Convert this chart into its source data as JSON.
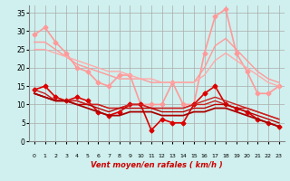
{
  "title": "Vent moyen/en rafales ( km/h )",
  "background_color": "#cff0ee",
  "grid_color": "#aaaaaa",
  "x_ticks": [
    0,
    1,
    2,
    3,
    4,
    5,
    6,
    7,
    8,
    9,
    10,
    11,
    12,
    13,
    14,
    15,
    16,
    17,
    18,
    19,
    20,
    21,
    22,
    23
  ],
  "y_ticks": [
    0,
    5,
    10,
    15,
    20,
    25,
    30,
    35
  ],
  "ylim": [
    0,
    37
  ],
  "xlim": [
    -0.5,
    23.5
  ],
  "series": [
    {
      "data": [
        29,
        31,
        27,
        24,
        20,
        19,
        16,
        15,
        18,
        18,
        10,
        10,
        10,
        16,
        10,
        10,
        24,
        34,
        36,
        24,
        19,
        13,
        13,
        15
      ],
      "color": "#ff9999",
      "linewidth": 1.2,
      "marker": "D",
      "markersize": 2.5
    },
    {
      "data": [
        27,
        27,
        25,
        23,
        21,
        20,
        19,
        18,
        17,
        17,
        17,
        16,
        16,
        16,
        16,
        16,
        20,
        26,
        28,
        25,
        22,
        19,
        17,
        16
      ],
      "color": "#ff9999",
      "linewidth": 1.0,
      "marker": null,
      "markersize": 0
    },
    {
      "data": [
        25,
        25,
        24,
        23,
        22,
        21,
        20,
        19,
        19,
        18,
        17,
        17,
        16,
        16,
        16,
        16,
        18,
        22,
        24,
        22,
        20,
        18,
        16,
        15
      ],
      "color": "#ffaaaa",
      "linewidth": 1.0,
      "marker": null,
      "markersize": 0
    },
    {
      "data": [
        14,
        15,
        12,
        11,
        12,
        11,
        8,
        7,
        8,
        10,
        10,
        3,
        6,
        5,
        5,
        10,
        13,
        15,
        10,
        9,
        8,
        6,
        5,
        4
      ],
      "color": "#dd0000",
      "linewidth": 1.2,
      "marker": "D",
      "markersize": 2.5
    },
    {
      "data": [
        14,
        13,
        11,
        11,
        11,
        10,
        10,
        9,
        9,
        10,
        10,
        9,
        9,
        9,
        9,
        10,
        11,
        12,
        11,
        10,
        9,
        8,
        7,
        6
      ],
      "color": "#cc2222",
      "linewidth": 1.0,
      "marker": null,
      "markersize": 0
    },
    {
      "data": [
        13,
        12,
        11,
        11,
        11,
        10,
        10,
        9,
        9,
        10,
        10,
        9,
        9,
        9,
        9,
        10,
        10,
        11,
        10,
        9,
        9,
        8,
        7,
        6
      ],
      "color": "#cc2222",
      "linewidth": 1.0,
      "marker": null,
      "markersize": 0
    },
    {
      "data": [
        13,
        12,
        11,
        11,
        10,
        10,
        9,
        8,
        9,
        9,
        9,
        9,
        8,
        8,
        8,
        9,
        9,
        10,
        10,
        9,
        8,
        7,
        6,
        5
      ],
      "color": "#bb0000",
      "linewidth": 1.0,
      "marker": null,
      "markersize": 0
    },
    {
      "data": [
        13,
        12,
        11,
        11,
        10,
        9,
        8,
        7,
        7,
        8,
        8,
        8,
        7,
        7,
        7,
        8,
        8,
        9,
        9,
        8,
        7,
        6,
        5,
        4
      ],
      "color": "#aa0000",
      "linewidth": 1.3,
      "marker": null,
      "markersize": 0
    }
  ],
  "wind_arrows": [
    "↑",
    "↗",
    "↑",
    "↑",
    "↑",
    "↑",
    "↑",
    "↖",
    "↖",
    "↑",
    "↖",
    "←",
    "←",
    "→",
    "↙",
    "↙",
    "↙",
    "↙",
    "↙",
    "↙",
    "↙",
    "↙",
    "↙",
    "↙"
  ]
}
